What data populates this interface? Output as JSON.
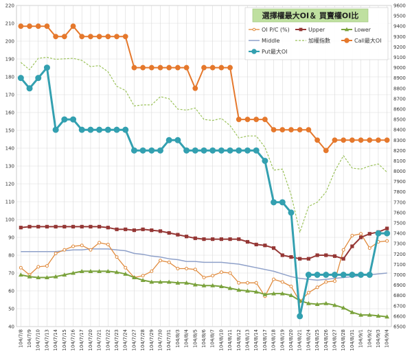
{
  "chart_data": {
    "type": "line",
    "title": "選擇權最大OI＆ 買賣權OI比",
    "xlabel": "",
    "ylabel": "",
    "left_axis": {
      "min": 40,
      "max": 220,
      "step": 10
    },
    "right_axis": {
      "min": 6500,
      "max": 9600,
      "step": 100
    },
    "grid": true,
    "legend_position": "top-right",
    "categories": [
      "104/7/8",
      "104/7/9",
      "104/7/10",
      "104/7/13",
      "104/7/14",
      "104/7/15",
      "104/7/16",
      "104/7/17",
      "104/7/20",
      "104/7/21",
      "104/7/22",
      "104/7/23",
      "104/7/24",
      "104/7/27",
      "104/7/28",
      "104/7/29",
      "104/7/30",
      "104/7/31",
      "104/8/3",
      "104/8/4",
      "104/8/5",
      "104/8/6",
      "104/8/7",
      "104/8/10",
      "104/8/11",
      "104/8/12",
      "104/8/13",
      "104/8/14",
      "104/8/17",
      "104/8/18",
      "104/8/19",
      "104/8/20",
      "104/8/21",
      "104/8/24",
      "104/8/25",
      "104/8/26",
      "104/8/27",
      "104/8/28",
      "104/8/31",
      "104/9/1",
      "104/9/2",
      "104/9/3",
      "104/9/4"
    ],
    "series": [
      {
        "name": "OI P/C (%)",
        "axis": "left",
        "color": "#e08a3c",
        "marker": "circle-open",
        "width": 1.3,
        "values": [
          73,
          69,
          73.5,
          74,
          81,
          83,
          85,
          85.5,
          83,
          87,
          86,
          79,
          73,
          67.5,
          68.5,
          71,
          77,
          76,
          72.5,
          72.5,
          72,
          67.5,
          68.5,
          70.5,
          70,
          64.5,
          64.5,
          64.5,
          57,
          66.5,
          65,
          62.5,
          54,
          59,
          62,
          65,
          65.5,
          83,
          91,
          92,
          84,
          87.5,
          88
        ]
      },
      {
        "name": "Upper",
        "axis": "left",
        "color": "#953735",
        "marker": "square",
        "width": 2,
        "values": [
          95.5,
          96,
          96,
          96,
          96,
          96,
          96,
          96,
          96,
          96,
          95.5,
          94.5,
          94.5,
          94,
          94.5,
          94,
          93.5,
          92.5,
          91.5,
          90.5,
          89.5,
          89,
          89,
          89,
          89,
          89,
          87.5,
          86,
          85.5,
          84,
          80,
          79,
          78,
          78,
          80,
          80,
          79.5,
          78,
          85,
          90,
          92,
          93,
          95
        ]
      },
      {
        "name": "Lower",
        "axis": "left",
        "color": "#7aa23c",
        "marker": "triangle",
        "width": 2,
        "values": [
          69,
          68,
          67.5,
          67.5,
          68,
          69,
          70,
          71,
          71,
          71,
          71,
          70.5,
          69.5,
          67.5,
          66,
          65,
          65,
          65,
          64.5,
          64.5,
          63.5,
          63,
          63,
          62.5,
          61.5,
          60.5,
          60,
          59.5,
          58,
          58.5,
          58.5,
          57.5,
          54.5,
          53,
          52.5,
          53,
          52,
          50.5,
          48,
          46.5,
          46.5,
          46,
          45.5
        ]
      },
      {
        "name": "Middle",
        "axis": "left",
        "color": "#8ea0c9",
        "marker": "none",
        "width": 1.5,
        "values": [
          82,
          82,
          82,
          82,
          82,
          82.5,
          83,
          83,
          83.5,
          83.5,
          83.5,
          83,
          82.5,
          81,
          80.5,
          79.5,
          79,
          78,
          77.5,
          76.5,
          76.5,
          76,
          76,
          76,
          75.5,
          75,
          74,
          73,
          72,
          71,
          69.5,
          68,
          67,
          66.5,
          66,
          66.5,
          67,
          67.5,
          68,
          68.5,
          69,
          69.5,
          70
        ]
      },
      {
        "name": "加權指數",
        "axis": "right",
        "color": "#9bc25a",
        "marker": "none",
        "dashed": true,
        "width": 1.2,
        "values": [
          9050,
          8980,
          9090,
          9100,
          9080,
          9085,
          9090,
          9070,
          9010,
          9020,
          8960,
          8820,
          8780,
          8630,
          8640,
          8640,
          8720,
          8700,
          8600,
          8590,
          8610,
          8500,
          8490,
          8510,
          8440,
          8320,
          8340,
          8340,
          8230,
          8010,
          8020,
          7770,
          7410,
          7660,
          7700,
          7800,
          8000,
          8150,
          8030,
          8020,
          8050,
          8070,
          7990
        ]
      },
      {
        "name": "Call最大OI",
        "axis": "right",
        "color": "#e5782c",
        "marker": "circle",
        "width": 2,
        "values": [
          9400,
          9400,
          9400,
          9400,
          9300,
          9300,
          9400,
          9300,
          9300,
          9300,
          9300,
          9300,
          9300,
          9000,
          9000,
          9000,
          9000,
          9000,
          9000,
          9000,
          8800,
          9000,
          9000,
          9000,
          9000,
          8500,
          8500,
          8500,
          8500,
          8400,
          8400,
          8400,
          8400,
          8400,
          8300,
          8200,
          8300,
          8300,
          8300,
          8300,
          8300,
          8300,
          8300
        ]
      },
      {
        "name": "Put最大OI",
        "axis": "right",
        "color": "#33a0b0",
        "marker": "circle",
        "width": 3,
        "values": [
          8900,
          8800,
          8900,
          9000,
          8400,
          8500,
          8500,
          8400,
          8400,
          8400,
          8400,
          8400,
          8400,
          8200,
          8200,
          8200,
          8200,
          8300,
          8300,
          8200,
          8200,
          8200,
          8200,
          8200,
          8200,
          8200,
          8200,
          8200,
          8100,
          7700,
          7700,
          7600,
          6600,
          7000,
          7000,
          7000,
          7000,
          7000,
          7000,
          7000,
          7000,
          7400,
          7400
        ]
      }
    ]
  }
}
